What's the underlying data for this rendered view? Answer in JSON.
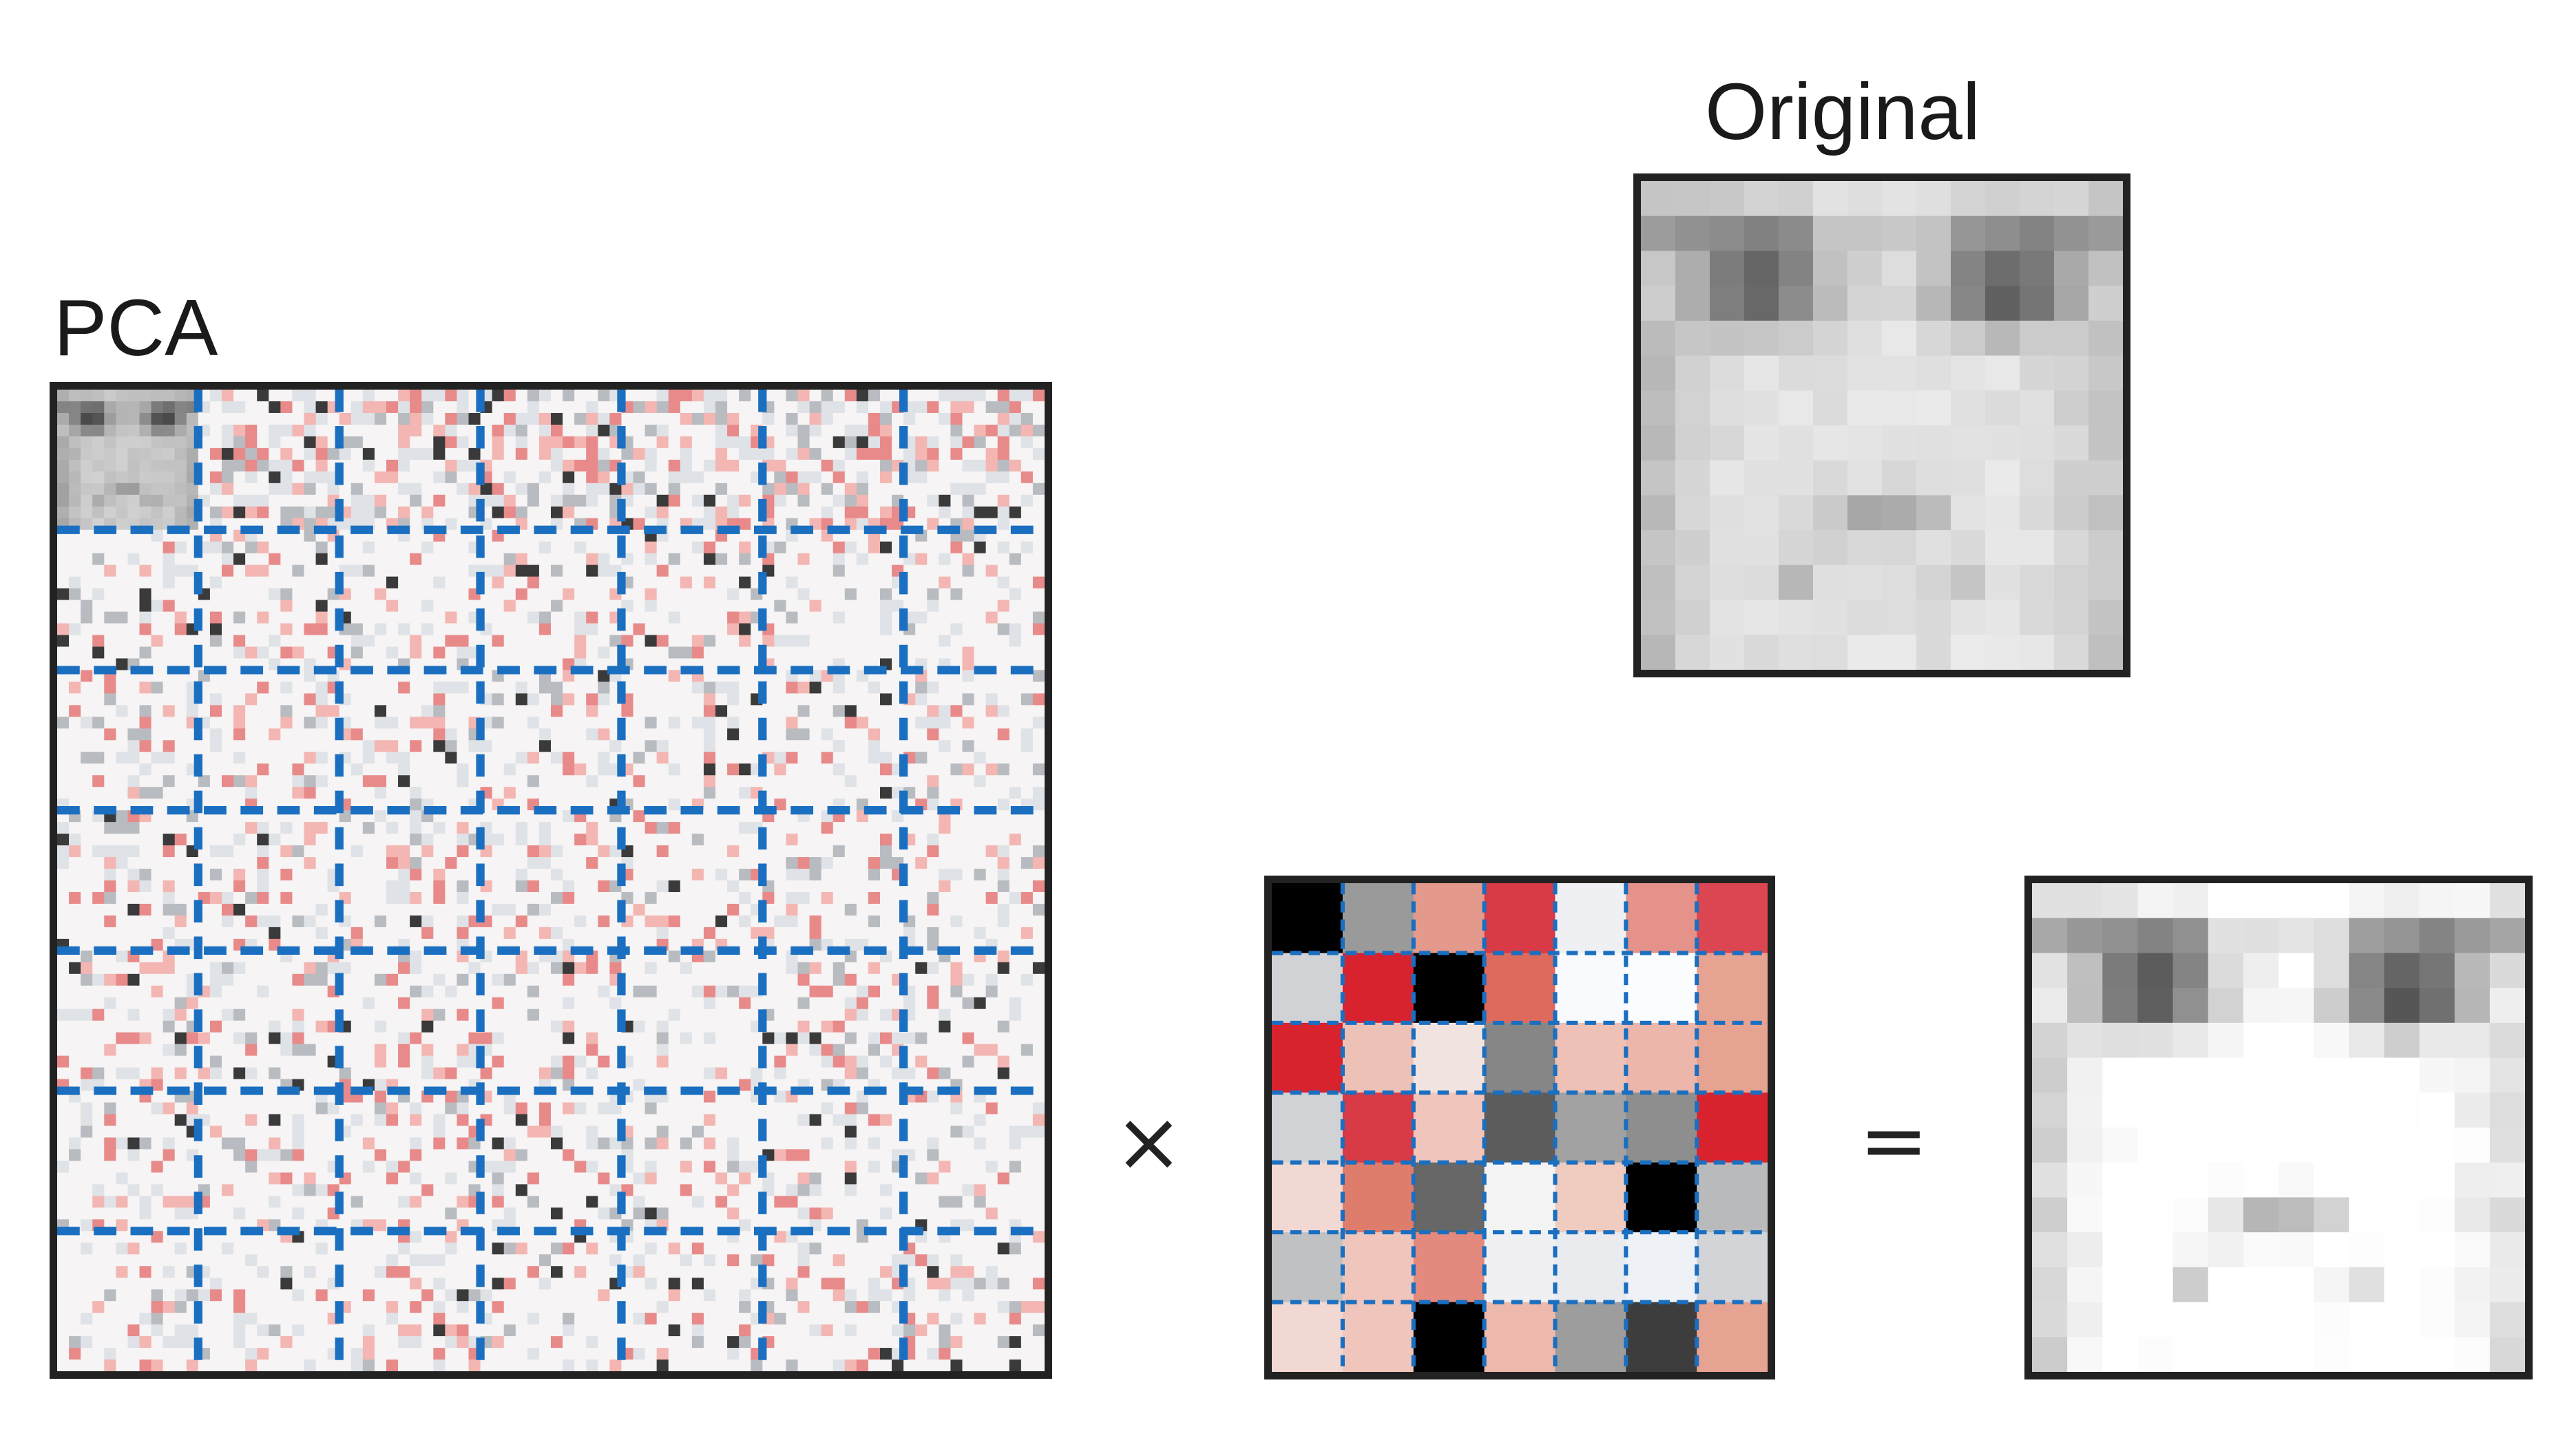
{
  "labels": {
    "pca": "PCA",
    "original": "Original"
  },
  "operators": {
    "times": "×",
    "equals": "="
  },
  "colors": {
    "grid_dashes": "#1b6fc0",
    "frame": "#222222",
    "positive": "#d8222e",
    "negative": "#000000",
    "background": "#ffffff"
  },
  "pca_grid": {
    "rows": 7,
    "cols": 7
  },
  "coefficient_grid": {
    "rows": 7,
    "cols": 7,
    "cells": [
      [
        "#000000",
        "#9a9a9a",
        "#e39a8c",
        "#d83a46",
        "#eef0f3",
        "#e4928a",
        "#dc4652"
      ],
      [
        "#d0d2d6",
        "#d8222e",
        "#000000",
        "#de6a5e",
        "#f8fafd",
        "#fbfcfe",
        "#e7a392"
      ],
      [
        "#d8222e",
        "#eec1b7",
        "#f1e3e0",
        "#868686",
        "#eec0b6",
        "#ecb6aa",
        "#e6a391"
      ],
      [
        "#d0d2d6",
        "#d83a46",
        "#f0c6bc",
        "#5c5c5c",
        "#a2a2a2",
        "#8e8e8e",
        "#d8222e"
      ],
      [
        "#f1d8d2",
        "#df7d6d",
        "#676767",
        "#f3f3f4",
        "#f0cbbf",
        "#000000",
        "#b9babc"
      ],
      [
        "#c0c1c3",
        "#f0c6bc",
        "#e4897d",
        "#f0f0f2",
        "#eaebee",
        "#eef1f5",
        "#d2d4d8"
      ],
      [
        "#f1d8d2",
        "#f0c6bc",
        "#000000",
        "#edb9ac",
        "#9d9d9d",
        "#3d3d3d",
        "#e7a392"
      ]
    ]
  }
}
